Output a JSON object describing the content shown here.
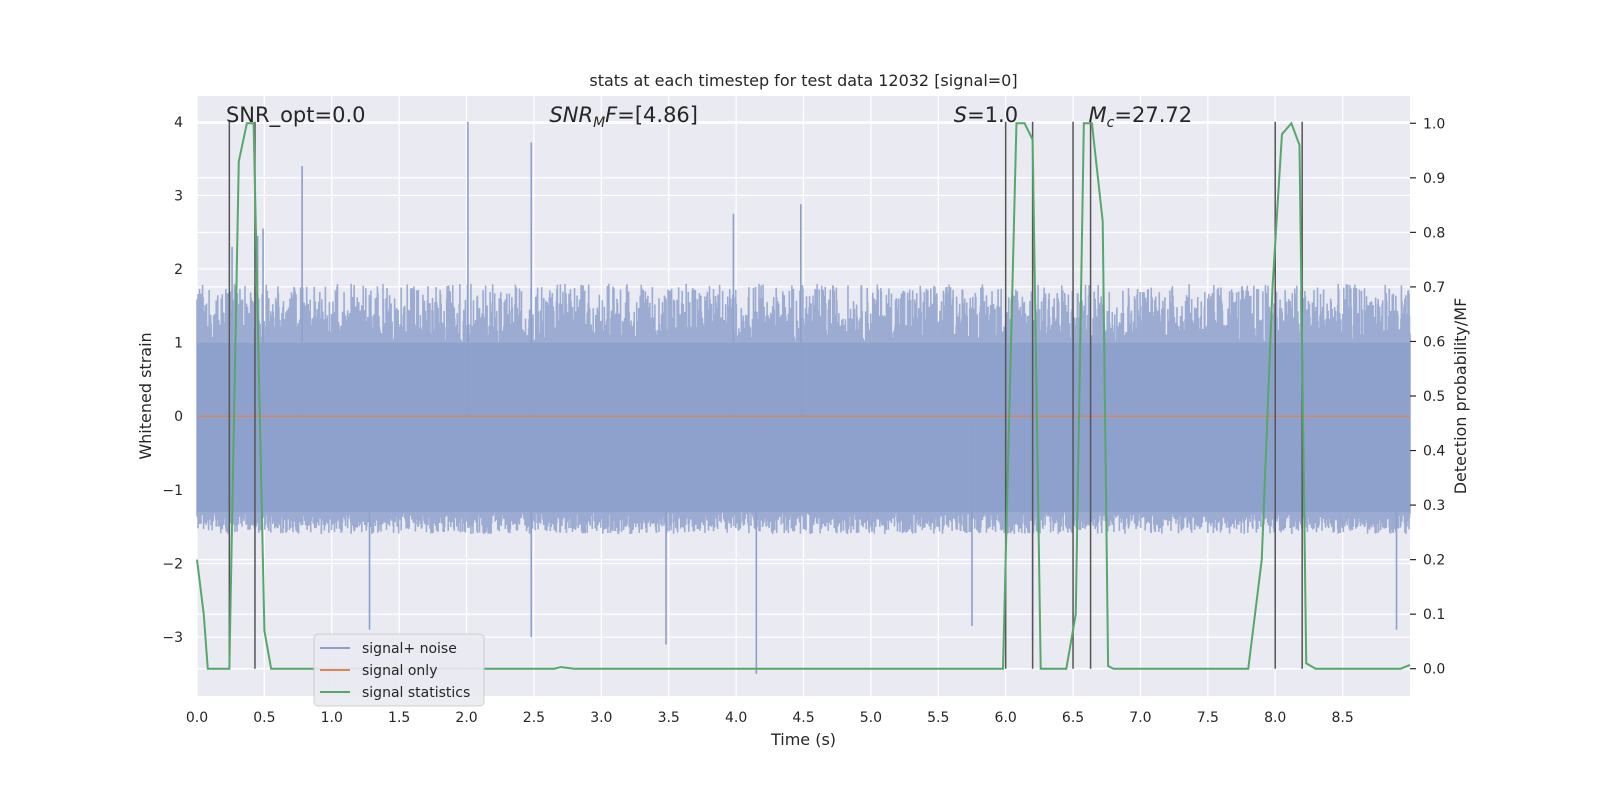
{
  "chart_data": {
    "type": "line",
    "title": "stats at each timestep for test data 12032 [signal=0]",
    "xlabel": "Time (s)",
    "ylabel": "Whitened strain",
    "ylabel_right": "Detection probability/MF",
    "xlim": [
      0,
      9
    ],
    "ylim": [
      -3.8,
      4.35
    ],
    "ylim_right": [
      -0.05,
      1.05
    ],
    "x_ticks": [
      0.0,
      0.5,
      1.0,
      1.5,
      2.0,
      2.5,
      3.0,
      3.5,
      4.0,
      4.5,
      5.0,
      5.5,
      6.0,
      6.5,
      7.0,
      7.5,
      8.0,
      8.5
    ],
    "x_tick_labels": [
      "0.0",
      "0.5",
      "1.0",
      "1.5",
      "2.0",
      "2.5",
      "3.0",
      "3.5",
      "4.0",
      "4.5",
      "5.0",
      "5.5",
      "6.0",
      "6.5",
      "7.0",
      "7.5",
      "8.0",
      "8.5"
    ],
    "y_ticks": [
      -3,
      -2,
      -1,
      0,
      1,
      2,
      3,
      4
    ],
    "y_tick_labels": [
      "−3",
      "−2",
      "−1",
      "0",
      "1",
      "2",
      "3",
      "4"
    ],
    "y_ticks_right": [
      0.0,
      0.1,
      0.2,
      0.3,
      0.4,
      0.5,
      0.6,
      0.7,
      0.8,
      0.9,
      1.0
    ],
    "y_tick_labels_right": [
      "0.0",
      "0.1",
      "0.2",
      "0.3",
      "0.4",
      "0.5",
      "0.6",
      "0.7",
      "0.8",
      "0.9",
      "1.0"
    ],
    "annotations": [
      {
        "text": "SNR_opt=0.0",
        "x": 0.2,
        "y": 4.0,
        "italic": false
      },
      {
        "prefix": "SNR",
        "sub": "M",
        "suffix": "F=[4.86]",
        "x": 2.6,
        "y": 4.0,
        "italic": true
      },
      {
        "prefix": "S",
        "sub": "",
        "suffix": "=1.0",
        "x": 5.6,
        "y": 4.0,
        "italic": true
      },
      {
        "prefix": "M",
        "sub": "c",
        "suffix": "=27.72",
        "x": 6.6,
        "y": 4.0,
        "italic": true
      }
    ],
    "legend": {
      "location": "lower-left",
      "entries": [
        {
          "label": "signal+ noise",
          "color": "#8da0cb"
        },
        {
          "label": "signal only",
          "color": "#dd8452"
        },
        {
          "label": "signal statistics",
          "color": "#55a868"
        }
      ]
    },
    "series": [
      {
        "name": "signal+ noise",
        "axis": "left",
        "color": "#8da0cb",
        "description": "whitened strain time series, roughly ±1.8 with spikes",
        "envelope": {
          "typical_upper": 1.8,
          "typical_lower": -1.6,
          "dense_upper": 1.0,
          "dense_lower": -1.3
        },
        "spikes": [
          {
            "x": 0.26,
            "y": 2.3
          },
          {
            "x": 0.45,
            "y": 2.45
          },
          {
            "x": 0.49,
            "y": 2.55
          },
          {
            "x": 0.78,
            "y": 3.4
          },
          {
            "x": 2.01,
            "y": 4.0
          },
          {
            "x": 2.48,
            "y": 3.72
          },
          {
            "x": 2.48,
            "y": -3.0
          },
          {
            "x": 1.28,
            "y": -2.9
          },
          {
            "x": 3.48,
            "y": -3.1
          },
          {
            "x": 3.98,
            "y": 2.75
          },
          {
            "x": 4.15,
            "y": -3.5
          },
          {
            "x": 4.48,
            "y": 2.88
          },
          {
            "x": 5.75,
            "y": -2.85
          },
          {
            "x": 6.2,
            "y": -3.05
          },
          {
            "x": 8.9,
            "y": -2.9
          }
        ]
      },
      {
        "name": "signal only",
        "axis": "left",
        "color": "#dd8452",
        "x": [
          0,
          9
        ],
        "y": [
          0,
          0
        ]
      },
      {
        "name": "signal statistics",
        "axis": "right",
        "color": "#55a868",
        "x": [
          0.0,
          0.05,
          0.08,
          0.15,
          0.24,
          0.31,
          0.37,
          0.42,
          0.5,
          0.55,
          0.6,
          1.0,
          1.5,
          2.0,
          2.5,
          2.65,
          2.7,
          2.8,
          3.0,
          4.0,
          5.0,
          5.5,
          5.8,
          5.98,
          6.03,
          6.08,
          6.14,
          6.2,
          6.26,
          6.35,
          6.45,
          6.52,
          6.58,
          6.64,
          6.72,
          6.76,
          6.8,
          6.9,
          7.0,
          7.5,
          7.8,
          7.9,
          7.98,
          8.05,
          8.12,
          8.18,
          8.23,
          8.3,
          8.4,
          8.6,
          8.75,
          8.85,
          8.93,
          9.0
        ],
        "y": [
          0.2,
          0.1,
          0.0,
          0.0,
          0.0,
          0.93,
          1.0,
          1.0,
          0.07,
          0.0,
          0.0,
          0.0,
          0.0,
          0.0,
          0.0,
          0.0,
          0.003,
          0.0,
          0.0,
          0.0,
          0.0,
          0.0,
          0.0,
          0.0,
          0.5,
          1.0,
          1.0,
          0.97,
          0.0,
          0.0,
          0.0,
          0.1,
          1.0,
          1.0,
          0.82,
          0.005,
          0.0,
          0.0,
          0.0,
          0.0,
          0.0,
          0.2,
          0.7,
          0.98,
          1.0,
          0.96,
          0.01,
          0.0,
          0.0,
          0.0,
          0.0,
          0.0,
          0.0,
          0.007
        ]
      }
    ],
    "vertical_lines": [
      {
        "x": 0.24,
        "color": "#555555"
      },
      {
        "x": 0.43,
        "color": "#555555"
      },
      {
        "x": 6.0,
        "color": "#555555"
      },
      {
        "x": 6.2,
        "color": "#555555"
      },
      {
        "x": 6.5,
        "color": "#555555"
      },
      {
        "x": 6.63,
        "color": "#555555"
      },
      {
        "x": 8.0,
        "color": "#555555"
      },
      {
        "x": 8.2,
        "color": "#555555"
      }
    ],
    "grid": true,
    "background": "#eaeaf2"
  }
}
